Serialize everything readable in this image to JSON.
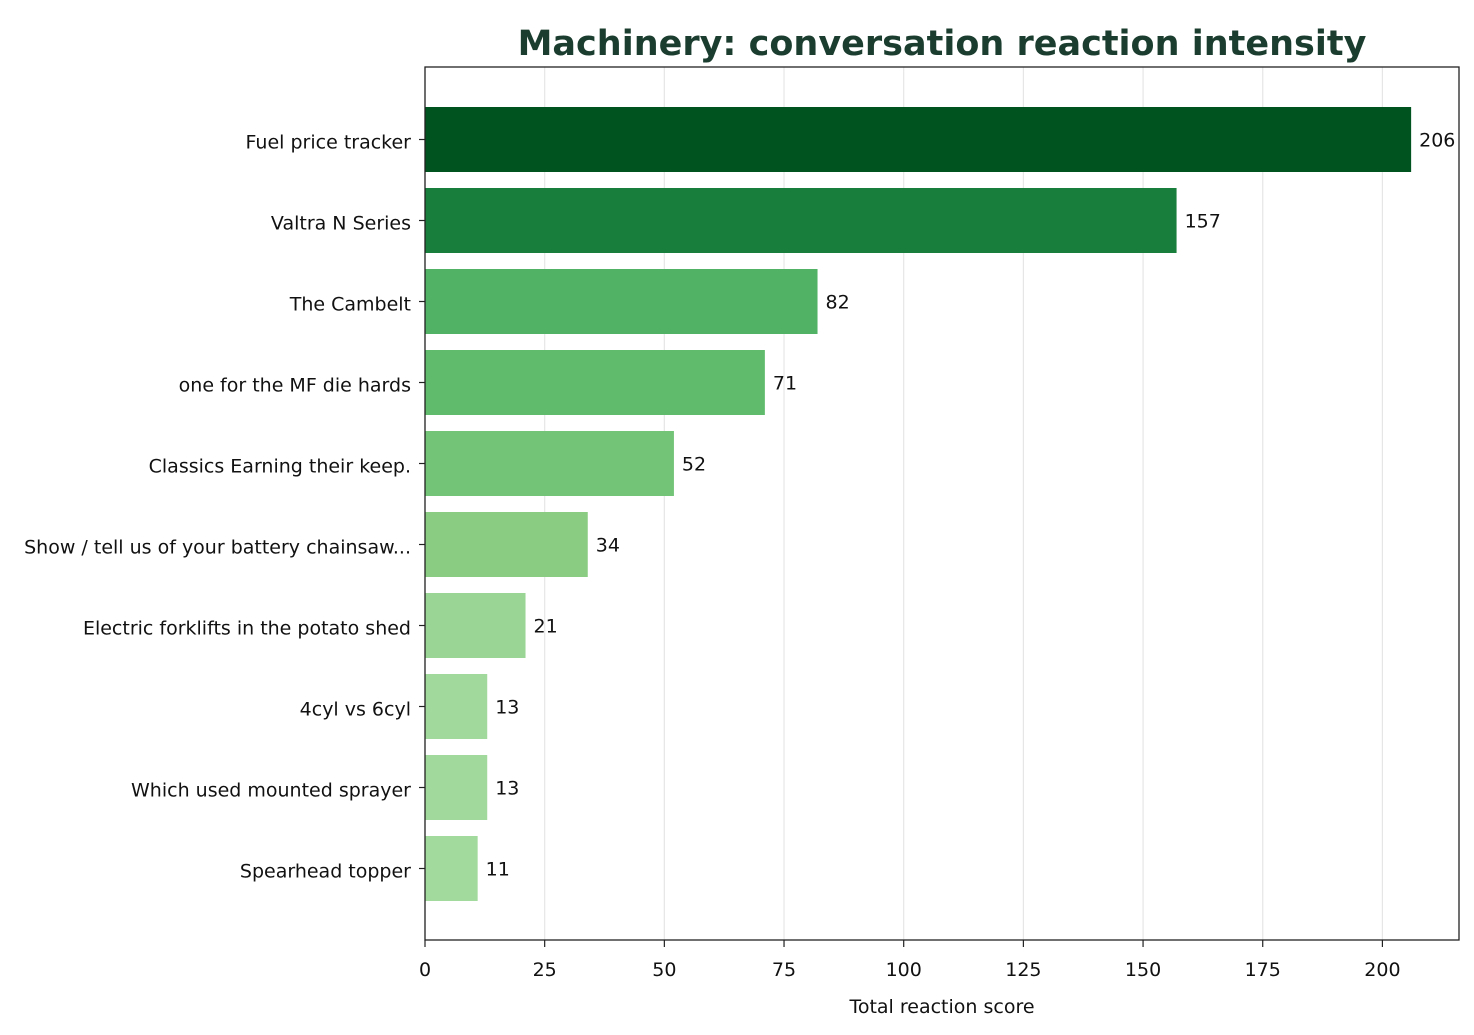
{
  "chart_data": {
    "type": "bar",
    "orientation": "horizontal",
    "title": "Machinery: conversation reaction intensity",
    "xlabel": "Total reaction score",
    "ylabel": "",
    "xlim": [
      0,
      216
    ],
    "xticks": [
      0,
      25,
      50,
      75,
      100,
      125,
      150,
      175,
      200
    ],
    "grid": "vertical",
    "categories": [
      "Fuel price tracker",
      "Valtra N Series",
      "The Cambelt",
      "one for the MF die hards",
      "Classics Earning their keep.",
      "Show / tell us of your battery chainsaw...",
      "Electric forklifts in the potato shed",
      "4cyl vs 6cyl",
      "Which used mounted sprayer",
      "Spearhead topper"
    ],
    "values": [
      206,
      157,
      82,
      71,
      52,
      34,
      21,
      13,
      13,
      11
    ],
    "colors": [
      "#00531f",
      "#177f3b",
      "#51b265",
      "#61bb6d",
      "#73c476",
      "#8acd82",
      "#9ad595",
      "#a0d99b",
      "#a0d99b",
      "#a2d99c"
    ]
  }
}
